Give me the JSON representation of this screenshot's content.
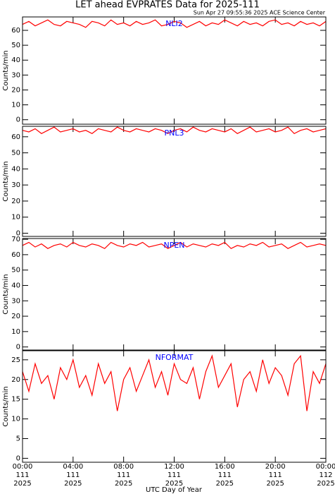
{
  "title": "LET ahead EVPRATES Data for 2025-111",
  "subtitle": "Sun Apr 27 09:55:36 2025 ACE Science Center",
  "x_label": "UTC Day of Year",
  "chart_data": [
    {
      "type": "line",
      "y_label": "Counts/min",
      "ylim": [
        -3,
        69
      ],
      "yticks": [
        0,
        10,
        20,
        30,
        40,
        50,
        60
      ],
      "xlim": [
        0,
        24
      ],
      "xticks": [
        0,
        4,
        8,
        12,
        16,
        20,
        24
      ],
      "x": [
        0,
        0.5,
        1,
        1.5,
        2,
        2.5,
        3,
        3.5,
        4,
        4.5,
        5,
        5.5,
        6,
        6.5,
        7,
        7.5,
        8,
        8.5,
        9,
        9.5,
        10,
        10.5,
        11,
        11.5,
        12,
        12.5,
        13,
        13.5,
        14,
        14.5,
        15,
        15.5,
        16,
        16.5,
        17,
        17.5,
        18,
        18.5,
        19,
        19.5,
        20,
        20.5,
        21,
        21.5,
        22,
        22.5,
        23,
        23.5,
        24
      ],
      "series": [
        {
          "name": "NLI2",
          "color": "#ff0000",
          "label_color": "#0000ff",
          "values": [
            64,
            66,
            63,
            65,
            67,
            64,
            63,
            66,
            65,
            64,
            62,
            66,
            65,
            63,
            67,
            64,
            65,
            63,
            66,
            64,
            65,
            67,
            63,
            64,
            66,
            65,
            62,
            64,
            66,
            63,
            65,
            64,
            67,
            65,
            63,
            66,
            64,
            65,
            63,
            66,
            67,
            64,
            65,
            63,
            66,
            64,
            65,
            63,
            66
          ]
        }
      ]
    },
    {
      "type": "line",
      "y_label": "Counts/min",
      "ylim": [
        -2,
        66.5
      ],
      "yticks": [
        0,
        10,
        20,
        30,
        40,
        50,
        60
      ],
      "xlim": [
        0,
        24
      ],
      "xticks": [
        0,
        4,
        8,
        12,
        16,
        20,
        24
      ],
      "x": [
        0,
        0.5,
        1,
        1.5,
        2,
        2.5,
        3,
        3.5,
        4,
        4.5,
        5,
        5.5,
        6,
        6.5,
        7,
        7.5,
        8,
        8.5,
        9,
        9.5,
        10,
        10.5,
        11,
        11.5,
        12,
        12.5,
        13,
        13.5,
        14,
        14.5,
        15,
        15.5,
        16,
        16.5,
        17,
        17.5,
        18,
        18.5,
        19,
        19.5,
        20,
        20.5,
        21,
        21.5,
        22,
        22.5,
        23,
        23.5,
        24
      ],
      "series": [
        {
          "name": "PNL3",
          "color": "#ff0000",
          "label_color": "#0000ff",
          "values": [
            64,
            63,
            65,
            62,
            64,
            66,
            63,
            64,
            65,
            63,
            64,
            62,
            65,
            64,
            63,
            66,
            64,
            63,
            65,
            64,
            63,
            65,
            64,
            62,
            64,
            65,
            63,
            66,
            64,
            63,
            65,
            64,
            63,
            65,
            62,
            64,
            66,
            63,
            64,
            65,
            63,
            64,
            66,
            62,
            64,
            65,
            63,
            64,
            65
          ]
        }
      ]
    },
    {
      "type": "line",
      "y_label": "Counts/min",
      "ylim": [
        -2,
        70.5
      ],
      "yticks": [
        0,
        10,
        20,
        30,
        40,
        50,
        60,
        70
      ],
      "xlim": [
        0,
        24
      ],
      "xticks": [
        0,
        4,
        8,
        12,
        16,
        20,
        24
      ],
      "x": [
        0,
        0.5,
        1,
        1.5,
        2,
        2.5,
        3,
        3.5,
        4,
        4.5,
        5,
        5.5,
        6,
        6.5,
        7,
        7.5,
        8,
        8.5,
        9,
        9.5,
        10,
        10.5,
        11,
        11.5,
        12,
        12.5,
        13,
        13.5,
        14,
        14.5,
        15,
        15.5,
        16,
        16.5,
        17,
        17.5,
        18,
        18.5,
        19,
        19.5,
        20,
        20.5,
        21,
        21.5,
        22,
        22.5,
        23,
        23.5,
        24
      ],
      "series": [
        {
          "name": "NPEN",
          "color": "#ff0000",
          "label_color": "#0000ff",
          "values": [
            66,
            68,
            65,
            67,
            64,
            66,
            67,
            65,
            68,
            66,
            65,
            67,
            66,
            64,
            68,
            66,
            65,
            67,
            66,
            68,
            65,
            66,
            67,
            64,
            66,
            68,
            65,
            67,
            66,
            65,
            67,
            66,
            68,
            64,
            66,
            65,
            67,
            66,
            68,
            65,
            66,
            67,
            64,
            66,
            68,
            65,
            66,
            67,
            66
          ]
        }
      ]
    },
    {
      "type": "line",
      "y_label": "Counts/min",
      "ylim": [
        -1,
        27.3
      ],
      "yticks": [
        0,
        5,
        10,
        15,
        20,
        25
      ],
      "xlim": [
        0,
        24
      ],
      "xticks": [
        {
          "value": 0,
          "label": "00:00"
        },
        {
          "value": 4,
          "label": "04:00"
        },
        {
          "value": 8,
          "label": "08:00"
        },
        {
          "value": 12,
          "label": "12:00"
        },
        {
          "value": 16,
          "label": "16:00"
        },
        {
          "value": 20,
          "label": "20:00"
        },
        {
          "value": 24,
          "label": "00:00"
        }
      ],
      "xtick_days": [
        "111",
        "111",
        "111",
        "111",
        "111",
        "111",
        "112"
      ],
      "xtick_years": [
        "2025",
        "2025",
        "2025",
        "2025",
        "2025",
        "2025",
        "2025"
      ],
      "x": [
        0,
        0.5,
        1,
        1.5,
        2,
        2.5,
        3,
        3.5,
        4,
        4.5,
        5,
        5.5,
        6,
        6.5,
        7,
        7.5,
        8,
        8.5,
        9,
        9.5,
        10,
        10.5,
        11,
        11.5,
        12,
        12.5,
        13,
        13.5,
        14,
        14.5,
        15,
        15.5,
        16,
        16.5,
        17,
        17.5,
        18,
        18.5,
        19,
        19.5,
        20,
        20.5,
        21,
        21.5,
        22,
        22.5,
        23,
        23.5,
        24
      ],
      "series": [
        {
          "name": "NFORMAT",
          "color": "#ff0000",
          "label_color": "#0000ff",
          "values": [
            22,
            17,
            24,
            19,
            21,
            15,
            23,
            20,
            25,
            18,
            21,
            16,
            24,
            19,
            22,
            12,
            20,
            23,
            17,
            21,
            25,
            18,
            22,
            16,
            24,
            20,
            19,
            23,
            15,
            22,
            26,
            18,
            21,
            24,
            13,
            20,
            22,
            17,
            25,
            19,
            23,
            21,
            16,
            24,
            26,
            12,
            22,
            19,
            24
          ]
        }
      ]
    }
  ]
}
